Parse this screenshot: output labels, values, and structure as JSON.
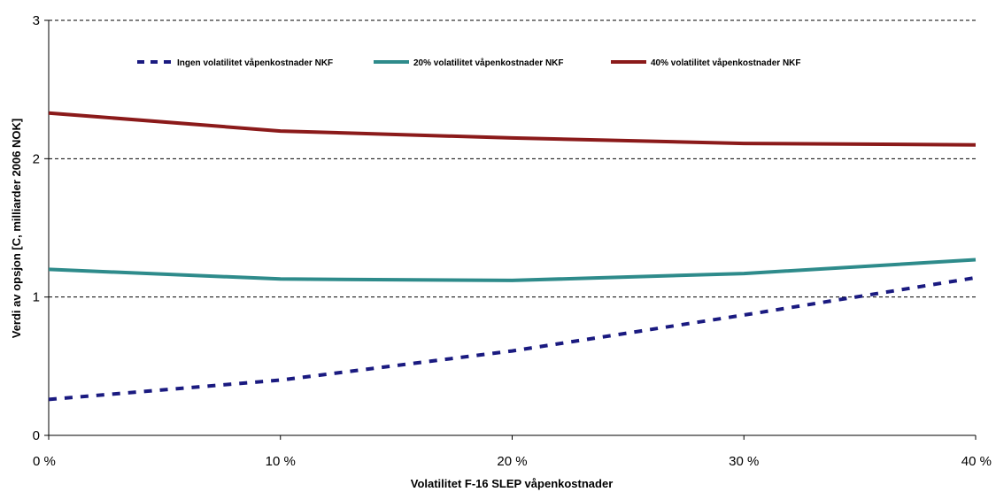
{
  "chart_data": {
    "type": "line",
    "title": "",
    "xlabel": "Volatilitet F-16 SLEP våpenkostnader",
    "ylabel": "Verdi av opsjon [C, milliarder 2006 NOK]",
    "x": [
      0,
      10,
      20,
      30,
      40
    ],
    "x_tick_labels": [
      "0 %",
      "10 %",
      "20 %",
      "30 %",
      "40 %"
    ],
    "y_tick_labels": [
      "0",
      "1",
      "2",
      "3"
    ],
    "xlim": [
      0,
      40
    ],
    "ylim": [
      0,
      3
    ],
    "grid": "horizontal dashed",
    "legend_position": "top",
    "series": [
      {
        "name": "Ingen volatilitet våpenkostnader NKF",
        "values": [
          0.26,
          0.4,
          0.61,
          0.87,
          1.14
        ],
        "color": "#1a1a80",
        "style": "dashed"
      },
      {
        "name": "20% volatilitet våpenkostnader NKF",
        "values": [
          1.2,
          1.13,
          1.12,
          1.17,
          1.27
        ],
        "color": "#2e8b8b",
        "style": "solid"
      },
      {
        "name": "40% volatilitet våpenkostnader NKF",
        "values": [
          2.33,
          2.2,
          2.15,
          2.11,
          2.1
        ],
        "color": "#8b1a1a",
        "style": "solid"
      }
    ]
  }
}
